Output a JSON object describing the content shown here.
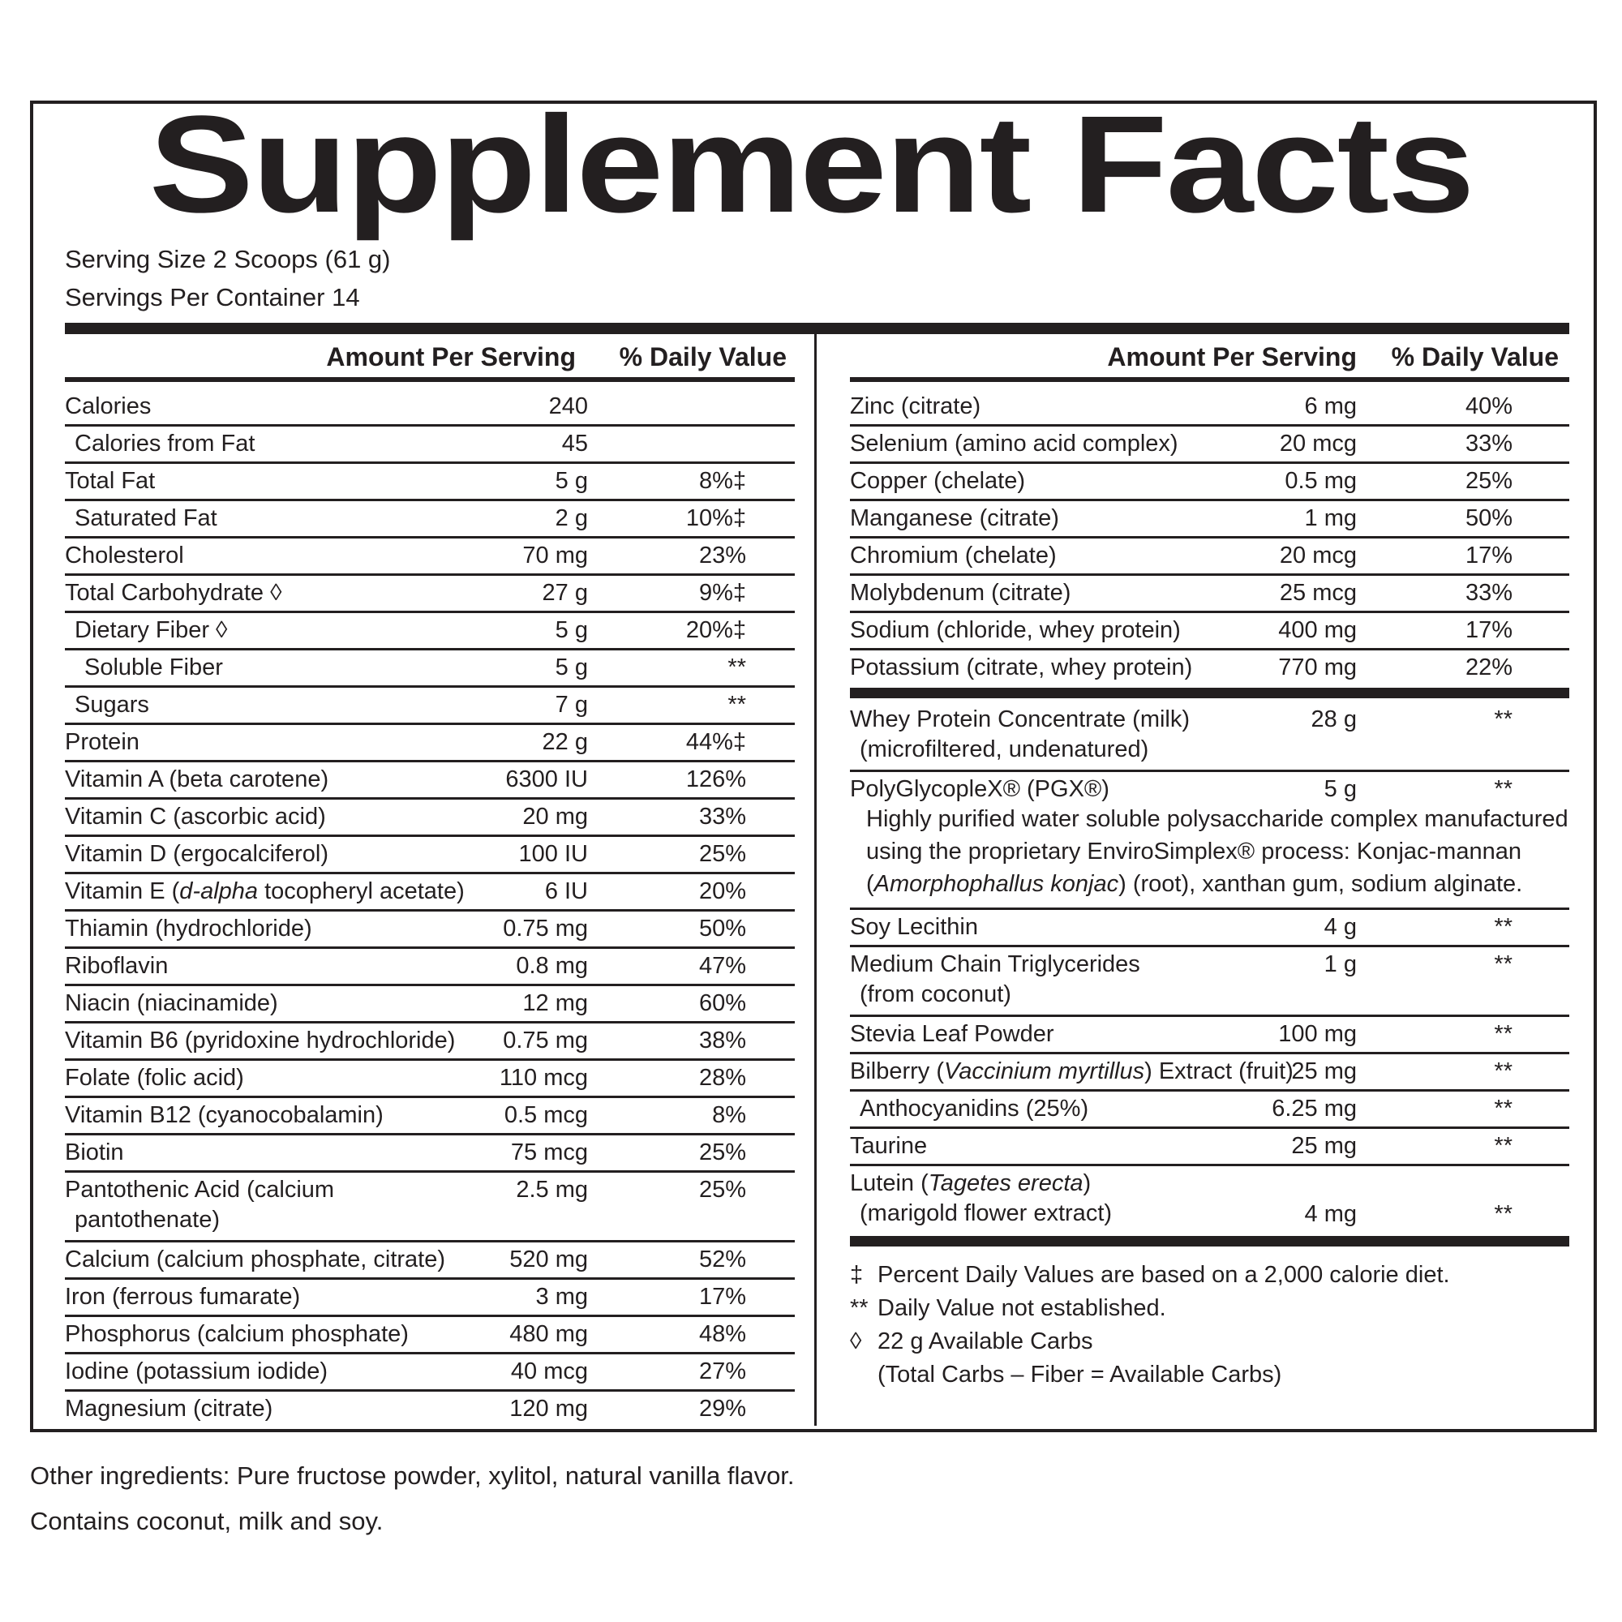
{
  "title": "Supplement Facts",
  "serving_size": "Serving Size 2 Scoops (61 g)",
  "servings_per_container": "Servings Per Container 14",
  "headers": {
    "amount": "Amount Per Serving",
    "daily_value": "% Daily Value"
  },
  "left_rows": [
    {
      "name": "Calories",
      "amount": "240",
      "dv": ""
    },
    {
      "name": "Calories from Fat",
      "amount": "45",
      "dv": ""
    },
    {
      "name": "Total Fat",
      "amount": "5 g",
      "dv": "8%‡"
    },
    {
      "name": "Saturated Fat",
      "amount": "2 g",
      "dv": "10%‡"
    },
    {
      "name": "Cholesterol",
      "amount": "70 mg",
      "dv": "23%"
    },
    {
      "name": "Total Carbohydrate ◊",
      "amount": "27 g",
      "dv": "9%‡"
    },
    {
      "name": "Dietary Fiber ◊",
      "amount": "5 g",
      "dv": "20%‡"
    },
    {
      "name": "Soluble Fiber",
      "amount": "5 g",
      "dv": "**"
    },
    {
      "name": "Sugars",
      "amount": "7 g",
      "dv": "**"
    },
    {
      "name": "Protein",
      "amount": "22 g",
      "dv": "44%‡"
    },
    {
      "name": "Vitamin A (beta carotene)",
      "amount": "6300 IU",
      "dv": "126%"
    },
    {
      "name": "Vitamin C (ascorbic acid)",
      "amount": "20 mg",
      "dv": "33%"
    },
    {
      "name": "Vitamin D (ergocalciferol)",
      "amount": "100 IU",
      "dv": "25%"
    },
    {
      "name": "Vitamin E (d-alpha tocopheryl acetate)",
      "amount": "6 IU",
      "dv": "20%"
    },
    {
      "name": "Thiamin (hydrochloride)",
      "amount": "0.75 mg",
      "dv": "50%"
    },
    {
      "name": "Riboflavin",
      "amount": "0.8 mg",
      "dv": "47%"
    },
    {
      "name": "Niacin (niacinamide)",
      "amount": "12 mg",
      "dv": "60%"
    },
    {
      "name": "Vitamin B6 (pyridoxine hydrochloride)",
      "amount": "0.75 mg",
      "dv": "38%"
    },
    {
      "name": "Folate (folic acid)",
      "amount": "110 mcg",
      "dv": "28%"
    },
    {
      "name": "Vitamin B12 (cyanocobalamin)",
      "amount": "0.5 mcg",
      "dv": "8%"
    },
    {
      "name": "Biotin",
      "amount": "75 mcg",
      "dv": "25%"
    },
    {
      "name": "Pantothenic Acid (calcium",
      "name2": "pantothenate)",
      "amount": "2.5 mg",
      "dv": "25%"
    },
    {
      "name": "Calcium (calcium phosphate, citrate)",
      "amount": "520 mg",
      "dv": "52%"
    },
    {
      "name": "Iron (ferrous fumarate)",
      "amount": "3 mg",
      "dv": "17%"
    },
    {
      "name": "Phosphorus (calcium phosphate)",
      "amount": "480 mg",
      "dv": "48%"
    },
    {
      "name": "Iodine (potassium iodide)",
      "amount": "40 mcg",
      "dv": "27%"
    },
    {
      "name": "Magnesium (citrate)",
      "amount": "120 mg",
      "dv": "29%"
    }
  ],
  "right_rows": [
    {
      "name": "Zinc (citrate)",
      "amount": "6 mg",
      "dv": "40%"
    },
    {
      "name": "Selenium (amino acid complex)",
      "amount": "20 mcg",
      "dv": "33%"
    },
    {
      "name": "Copper (chelate)",
      "amount": "0.5 mg",
      "dv": "25%"
    },
    {
      "name": "Manganese (citrate)",
      "amount": "1 mg",
      "dv": "50%"
    },
    {
      "name": "Chromium (chelate)",
      "amount": "20 mcg",
      "dv": "17%"
    },
    {
      "name": "Molybdenum (citrate)",
      "amount": "25 mcg",
      "dv": "33%"
    },
    {
      "name": "Sodium (chloride, whey protein)",
      "amount": "400 mg",
      "dv": "17%"
    },
    {
      "name": "Potassium (citrate, whey protein)",
      "amount": "770 mg",
      "dv": "22%"
    }
  ],
  "right_rows_2": [
    {
      "name": "Whey Protein Concentrate (milk)",
      "name2": "(microfiltered, undenatured)",
      "amount": "28 g",
      "dv": "**"
    },
    {
      "name": "PolyGlycopleX® (PGX®)",
      "amount": "5 g",
      "dv": "**",
      "desc": [
        "Highly purified water soluble polysaccharide complex manufactured",
        "using the proprietary EnviroSimplex® process: Konjac-mannan",
        "(Amorphophallus konjac) (root), xanthan gum, sodium alginate."
      ]
    },
    {
      "name": "Soy Lecithin",
      "amount": "4 g",
      "dv": "**"
    },
    {
      "name": "Medium Chain Triglycerides",
      "name2": "(from coconut)",
      "amount": "1 g",
      "dv": "**"
    },
    {
      "name": "Stevia Leaf Powder",
      "amount": "100 mg",
      "dv": "**"
    },
    {
      "name": "Bilberry (Vaccinium myrtillus) Extract (fruit)",
      "amount": "25 mg",
      "dv": "**"
    },
    {
      "name": "Anthocyanidins (25%)",
      "amount": "6.25 mg",
      "dv": "**"
    },
    {
      "name": "Taurine",
      "amount": "25 mg",
      "dv": "**"
    },
    {
      "name": "Lutein (Tagetes erecta)",
      "name2": "(marigold flower extract)",
      "amount": "4 mg",
      "dv": "**"
    }
  ],
  "footnotes": [
    {
      "sym": "‡",
      "text": "Percent Daily Values are based on a 2,000 calorie diet."
    },
    {
      "sym": "**",
      "text": "Daily Value not established."
    },
    {
      "sym": "◊",
      "text": "22 g Available Carbs"
    },
    {
      "sym": "",
      "text": "(Total Carbs – Fiber = Available Carbs)"
    }
  ],
  "other_ingredients": "Other ingredients: Pure fructose powder, xylitol, natural vanilla flavor.",
  "allergens": "Contains coconut, milk and soy."
}
